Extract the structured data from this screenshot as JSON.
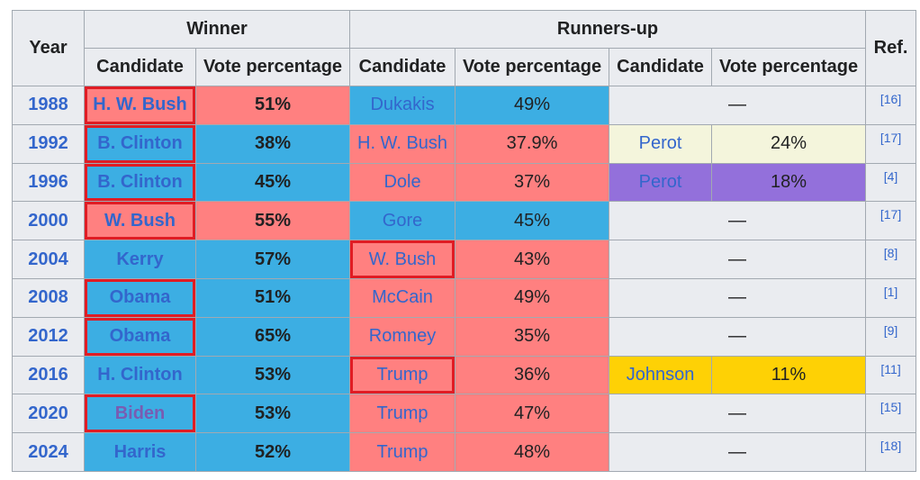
{
  "headers": {
    "year": "Year",
    "winner": "Winner",
    "runners_up": "Runners-up",
    "ref": "Ref.",
    "candidate": "Candidate",
    "vote_percentage": "Vote percentage"
  },
  "colors": {
    "republican": "#ff8080",
    "democratic": "#3caee3",
    "perot_1992": "#f4f5dc",
    "perot_1996": "#9370db",
    "libertarian": "#fed105",
    "highlight_box": "#e01c24"
  },
  "none_mark": "—",
  "rows": [
    {
      "year": "1988",
      "winner": "H. W. Bush",
      "winner_pct": "51%",
      "runner1": "Dukakis",
      "runner1_pct": "49%",
      "runner2": "",
      "runner2_pct": "",
      "ref": "[16]"
    },
    {
      "year": "1992",
      "winner": "B. Clinton",
      "winner_pct": "38%",
      "runner1": "H. W. Bush",
      "runner1_pct": "37.9%",
      "runner2": "Perot",
      "runner2_pct": "24%",
      "ref": "[17]"
    },
    {
      "year": "1996",
      "winner": "B. Clinton",
      "winner_pct": "45%",
      "runner1": "Dole",
      "runner1_pct": "37%",
      "runner2": "Perot",
      "runner2_pct": "18%",
      "ref": "[4]"
    },
    {
      "year": "2000",
      "winner": "W. Bush",
      "winner_pct": "55%",
      "runner1": "Gore",
      "runner1_pct": "45%",
      "runner2": "",
      "runner2_pct": "",
      "ref": "[17]"
    },
    {
      "year": "2004",
      "winner": "Kerry",
      "winner_pct": "57%",
      "runner1": "W. Bush",
      "runner1_pct": "43%",
      "runner2": "",
      "runner2_pct": "",
      "ref": "[8]"
    },
    {
      "year": "2008",
      "winner": "Obama",
      "winner_pct": "51%",
      "runner1": "McCain",
      "runner1_pct": "49%",
      "runner2": "",
      "runner2_pct": "",
      "ref": "[1]"
    },
    {
      "year": "2012",
      "winner": "Obama",
      "winner_pct": "65%",
      "runner1": "Romney",
      "runner1_pct": "35%",
      "runner2": "",
      "runner2_pct": "",
      "ref": "[9]"
    },
    {
      "year": "2016",
      "winner": "H. Clinton",
      "winner_pct": "53%",
      "runner1": "Trump",
      "runner1_pct": "36%",
      "runner2": "Johnson",
      "runner2_pct": "11%",
      "ref": "[11]"
    },
    {
      "year": "2020",
      "winner": "Biden",
      "winner_pct": "53%",
      "runner1": "Trump",
      "runner1_pct": "47%",
      "runner2": "",
      "runner2_pct": "",
      "ref": "[15]"
    },
    {
      "year": "2024",
      "winner": "Harris",
      "winner_pct": "52%",
      "runner1": "Trump",
      "runner1_pct": "48%",
      "runner2": "",
      "runner2_pct": "",
      "ref": "[18]"
    }
  ]
}
